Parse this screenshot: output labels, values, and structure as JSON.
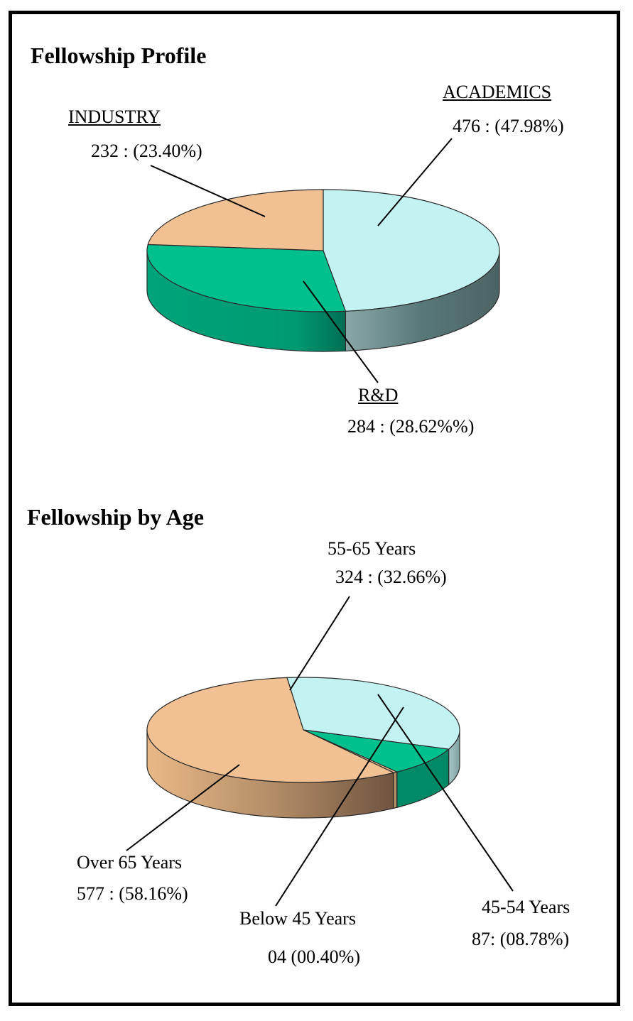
{
  "chart_data": [
    {
      "type": "pie",
      "title": "Fellowship Profile",
      "slices": [
        {
          "name": "ACADEMICS",
          "count": 476,
          "percent": 47.98,
          "value_label": "476 : (47.98%)",
          "color": "#c3f2f2"
        },
        {
          "name": "R&D",
          "count": 284,
          "percent": 28.62,
          "value_label": "284 : (28.62%%)",
          "color": "#00c08e"
        },
        {
          "name": "INDUSTRY",
          "count": 232,
          "percent": 23.4,
          "value_label": "232 : (23.40%)",
          "color": "#f2c193"
        }
      ]
    },
    {
      "type": "pie",
      "title": "Fellowship by Age",
      "slices": [
        {
          "name": "55-65 Years",
          "count": 324,
          "percent": 32.66,
          "value_label": "324 : (32.66%)",
          "color": "#c3f2f2"
        },
        {
          "name": "45-54 Years",
          "count": 87,
          "percent": 8.78,
          "value_label": "87: (08.78%)",
          "color": "#00c08e"
        },
        {
          "name": "Below 45 Years",
          "count": 4,
          "percent": 0.4,
          "value_label": "04  (00.40%)",
          "color": "#f2c193"
        },
        {
          "name": "Over 65 Years",
          "count": 577,
          "percent": 58.16,
          "value_label": "577 : (58.16%)",
          "color": "#f2c193"
        }
      ]
    }
  ]
}
